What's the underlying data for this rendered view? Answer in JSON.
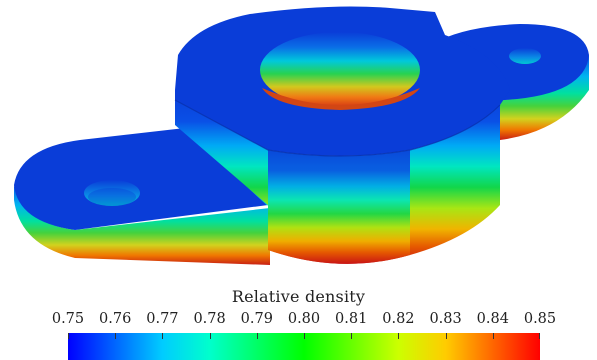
{
  "legend": {
    "title": "Relative density",
    "ticks": [
      "0.75",
      "0.76",
      "0.77",
      "0.78",
      "0.79",
      "0.80",
      "0.81",
      "0.82",
      "0.83",
      "0.84",
      "0.85"
    ],
    "range": [
      0.75,
      0.85
    ],
    "colormap": [
      "#0000ff",
      "#00ccff",
      "#00ff66",
      "#66ff00",
      "#ffcc00",
      "#ff0000"
    ]
  },
  "scene": {
    "top_surface_color": "#0a3dd8",
    "bottom_color": "#c81414"
  }
}
